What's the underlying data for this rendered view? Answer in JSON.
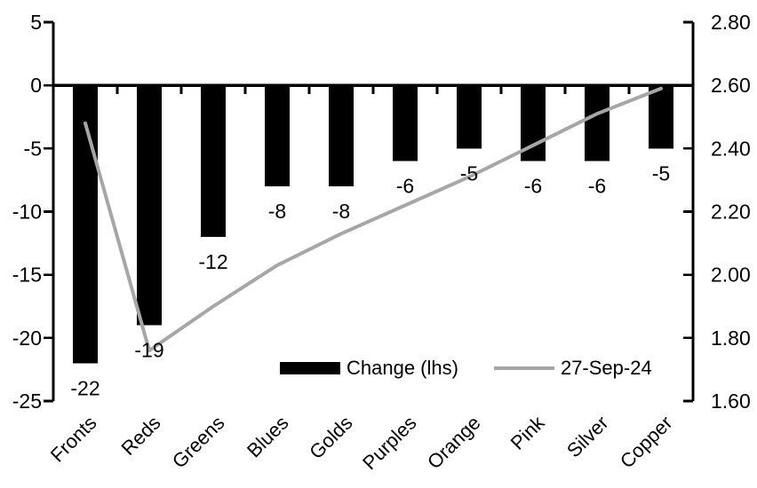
{
  "chart_data": {
    "type": "bar",
    "subtype": "bar-line-combo",
    "title": "",
    "categories": [
      "Fronts",
      "Reds",
      "Greens",
      "Blues",
      "Golds",
      "Purples",
      "Orange",
      "Pink",
      "Silver",
      "Copper"
    ],
    "series": [
      {
        "name": "Change (lhs)",
        "type": "bar",
        "axis": "left",
        "color": "#000000",
        "values": [
          -22,
          -19,
          -12,
          -8,
          -8,
          -6,
          -5,
          -6,
          -6,
          -5
        ],
        "data_labels": [
          "-22",
          "-19",
          "-12",
          "-8",
          "-8",
          "-6",
          "-5",
          "-6",
          "-6",
          "-5"
        ]
      },
      {
        "name": "27-Sep-24",
        "type": "line",
        "axis": "right",
        "color": "#a6a6a6",
        "values": [
          2.48,
          1.76,
          1.9,
          2.03,
          2.13,
          2.22,
          2.31,
          2.41,
          2.51,
          2.59
        ]
      }
    ],
    "left_axis": {
      "min": -25,
      "max": 5,
      "step": 5,
      "tick_labels": [
        "5",
        "0",
        "-5",
        "-10",
        "-15",
        "-20",
        "-25"
      ]
    },
    "right_axis": {
      "min": 1.6,
      "max": 2.8,
      "step": 0.2,
      "tick_labels": [
        "2.80",
        "2.60",
        "2.40",
        "2.20",
        "2.00",
        "1.80",
        "1.60"
      ]
    },
    "legend": [
      {
        "label": "Change (lhs)",
        "swatch": "bar-swatch"
      },
      {
        "label": "27-Sep-24",
        "swatch": "line-swatch"
      }
    ],
    "layout": {
      "grid": "off",
      "legend_position": "bottom-center-inside",
      "category_label_rotation_deg": -45,
      "zero_line": true
    },
    "colors": {
      "bar": "#000000",
      "line": "#a6a6a6",
      "axis": "#000000",
      "text": "#000000",
      "background": "#ffffff"
    }
  }
}
